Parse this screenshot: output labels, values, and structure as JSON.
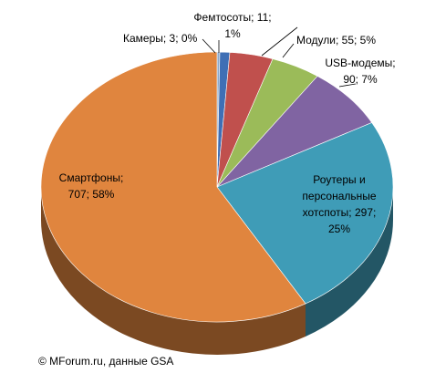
{
  "chart_data": {
    "type": "pie3d",
    "categories": [
      "Камеры; 3; 0%",
      "Фемтосоты; 11;\n1%",
      null,
      "Модули; 55; 5%",
      "USB-модемы;\n90; 7%",
      "Роутеры и\nперсональные\nхотспоты; 297;\n25%",
      "Смартфоны;\n707; 58%"
    ],
    "values": [
      3,
      11,
      48,
      55,
      90,
      297,
      707
    ],
    "colors": [
      "#8eaacb",
      "#3f6fb5",
      "#c0504d",
      "#9bbb59",
      "#8064a2",
      "#3f9cb7",
      "#e0853e"
    ],
    "source": "© MForum.ru, данные GSA"
  }
}
